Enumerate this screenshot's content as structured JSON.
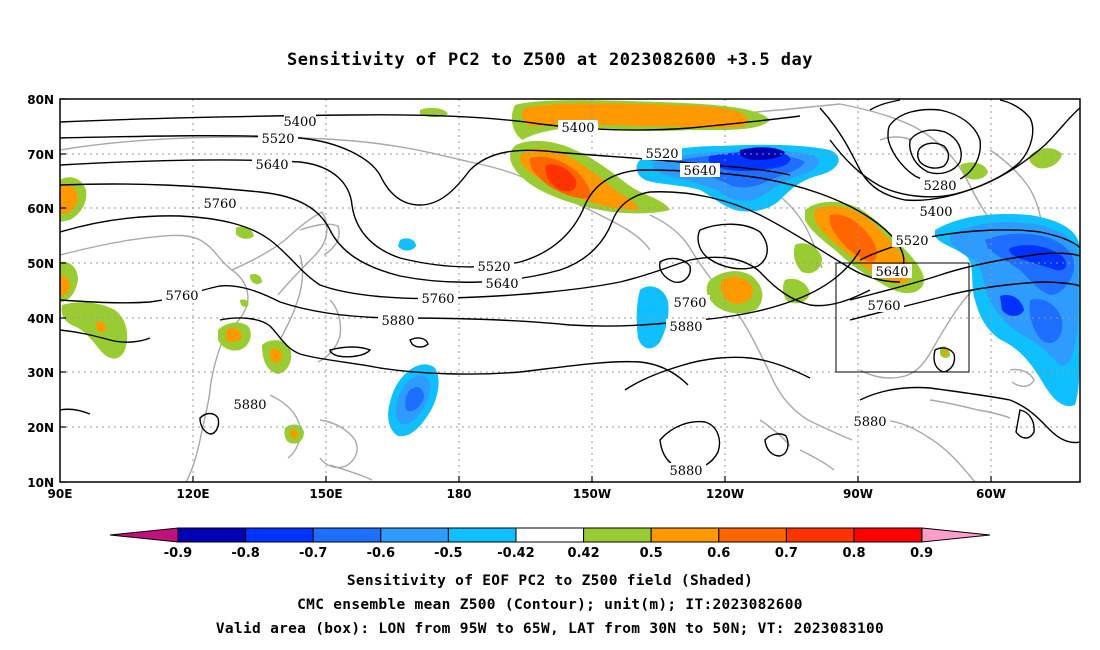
{
  "title": "Sensitivity of PC2 to Z500 at 2023082600 +3.5 day",
  "axes": {
    "lat_labels": [
      "80N",
      "70N",
      "60N",
      "50N",
      "40N",
      "30N",
      "20N",
      "10N"
    ],
    "lon_labels": [
      "90E",
      "120E",
      "150E",
      "180",
      "150W",
      "120W",
      "90W",
      "60W"
    ]
  },
  "contours": [
    {
      "value": "5400",
      "label": "5400"
    },
    {
      "value": "5520",
      "label": "5520"
    },
    {
      "value": "5640",
      "label": "5640"
    },
    {
      "value": "5760",
      "label": "5760"
    },
    {
      "value": "5880",
      "label": "5880"
    },
    {
      "value": "5280",
      "label": "5280"
    }
  ],
  "contour_labels": [
    "5400",
    "5520",
    "5640",
    "5760",
    "5400",
    "5520",
    "5640",
    "5520",
    "5640",
    "5760",
    "5880",
    "5760",
    "5760",
    "5880",
    "5880",
    "5280",
    "5400",
    "5520",
    "5640",
    "5760",
    "5880",
    "5880"
  ],
  "colorbar": {
    "labels": [
      "-0.9",
      "-0.8",
      "-0.7",
      "-0.6",
      "-0.5",
      "-0.42",
      "0.42",
      "0.5",
      "0.6",
      "0.7",
      "0.8",
      "0.9"
    ],
    "colors": [
      "#0000b4",
      "#0033ff",
      "#1e6eff",
      "#2e9bff",
      "#0fbfff",
      "#ffffff",
      "#99cc33",
      "#ff9900",
      "#ff6600",
      "#ff3300",
      "#ff0000"
    ],
    "low_end_color": "#c0117e",
    "high_end_color": "#ff9ecb"
  },
  "valid_box": {
    "lon_min": "95W",
    "lon_max": "65W",
    "lat_min": "30N",
    "lat_max": "50N"
  },
  "caption": {
    "line1": "Sensitivity of EOF PC2 to Z500 field (Shaded)",
    "line2": "CMC ensemble mean Z500 (Contour); unit(m); IT:2023082600",
    "line3": "Valid area (box): LON from 95W to 65W, LAT from 30N to 50N; VT: 2023083100"
  }
}
